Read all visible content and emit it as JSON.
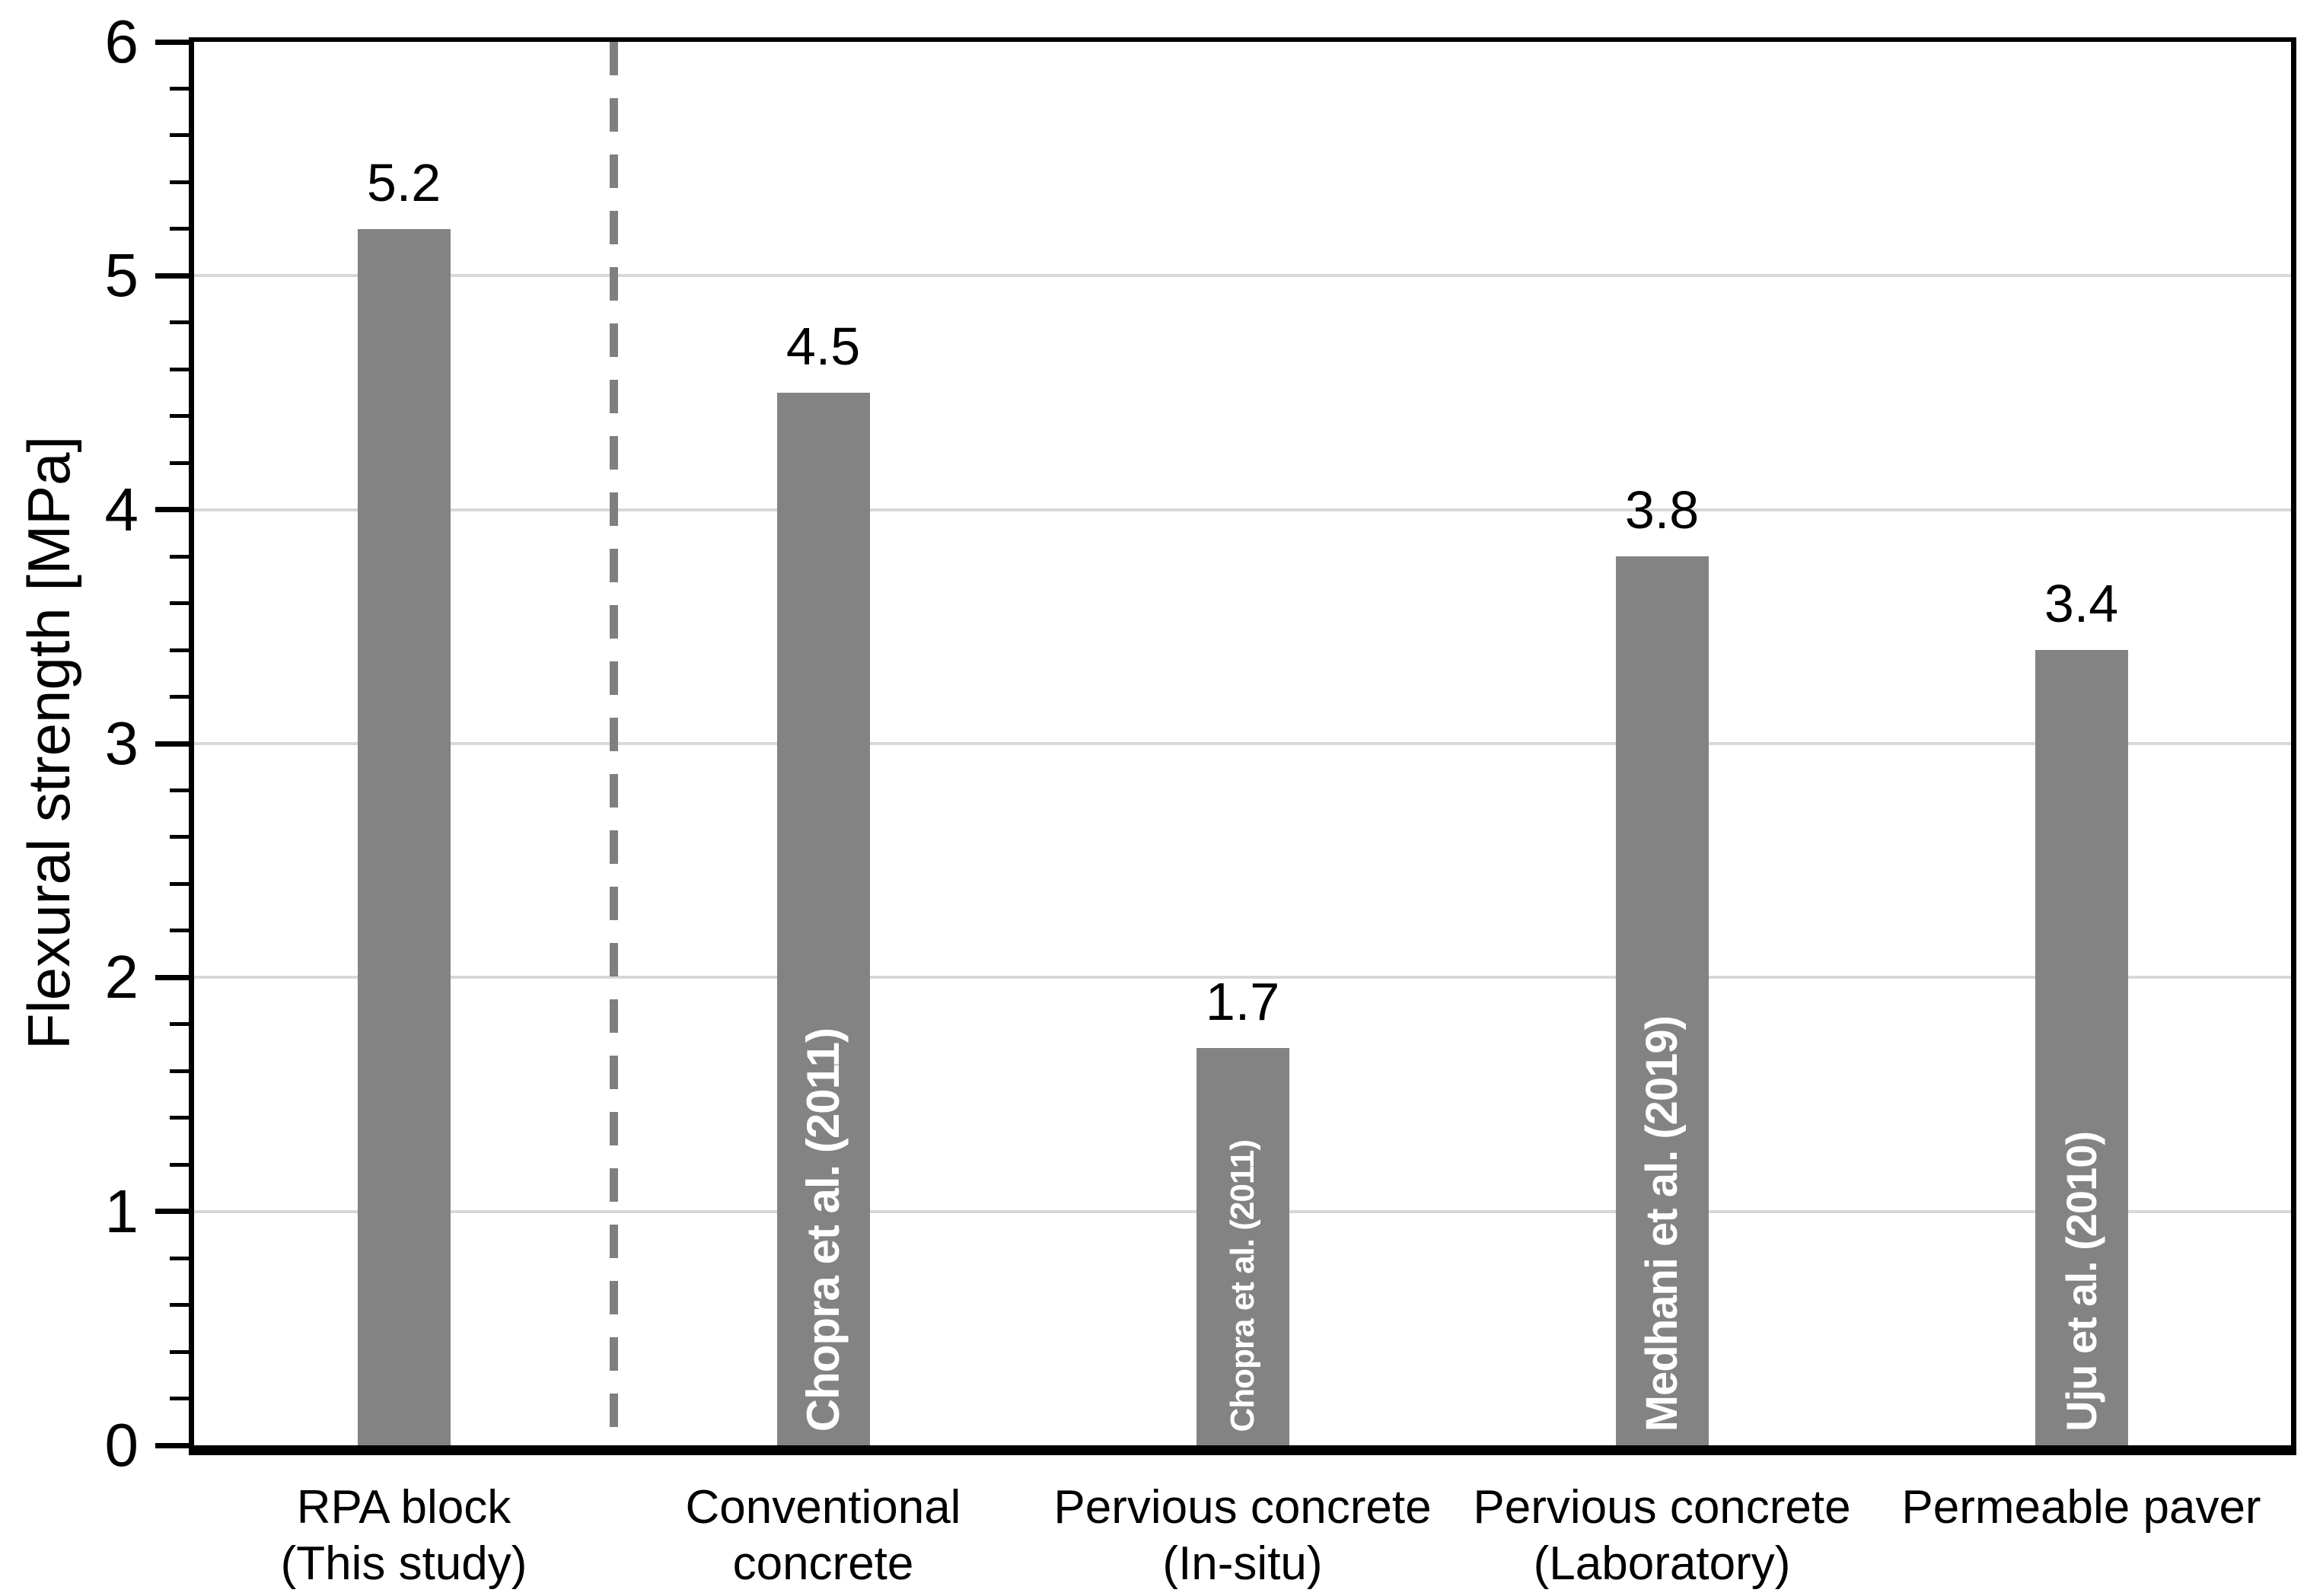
{
  "chart_data": {
    "type": "bar",
    "title": "",
    "ylabel": "Flexural strength [MPa]",
    "xlabel": "",
    "ylim": [
      0,
      6
    ],
    "y_major_tick_step": 1,
    "y_minor_tick_step": 0.2,
    "y_tick_labels": [
      "0",
      "1",
      "2",
      "3",
      "4",
      "5",
      "6"
    ],
    "grid": "horizontal gridlines at every 1 MPa",
    "legend_position": "none",
    "categories": [
      {
        "label_lines": [
          "RPA block",
          "(This study)"
        ],
        "value": 5.2,
        "value_label": "5.2",
        "inner_label": ""
      },
      {
        "label_lines": [
          "Conventional",
          "concrete"
        ],
        "value": 4.5,
        "value_label": "4.5",
        "inner_label": "Chopra et al. (2011)"
      },
      {
        "label_lines": [
          "Pervious concrete",
          "(In-situ)"
        ],
        "value": 1.7,
        "value_label": "1.7",
        "inner_label": "Chopra et al. (2011)"
      },
      {
        "label_lines": [
          "Pervious concrete",
          "(Laboratory)"
        ],
        "value": 3.8,
        "value_label": "3.8",
        "inner_label": "Medhani et al. (2019)"
      },
      {
        "label_lines": [
          "Permeable paver"
        ],
        "value": 3.4,
        "value_label": "3.4",
        "inner_label": "Uju et al. (2010)"
      }
    ],
    "separator": {
      "type": "dashed-vertical-line",
      "after_category": "RPA block (This study)",
      "color": "#7f7f7f"
    },
    "colors": {
      "bar": "#838383",
      "bar_inner_label": "#ffffff",
      "value_label": "#000000",
      "grid": "#d8d8d8",
      "axis": "#000000",
      "background": "#ffffff"
    }
  }
}
